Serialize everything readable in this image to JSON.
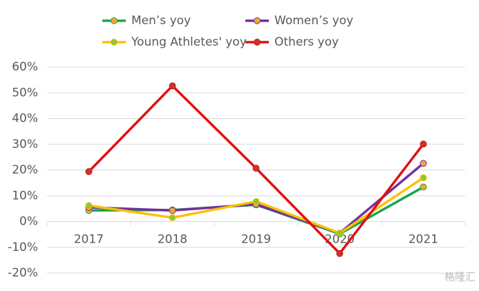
{
  "chart_data": {
    "type": "line",
    "categories": [
      "2017",
      "2018",
      "2019",
      "2020",
      "2021"
    ],
    "series": [
      {
        "name": "Men’s yoy",
        "color": "#1aa64a",
        "marker_color": "#f0a830",
        "values": [
          4.3,
          4.5,
          6.5,
          -4.8,
          13.4
        ]
      },
      {
        "name": "Women’s yoy",
        "color": "#7030a0",
        "marker_color": "#f0a830",
        "values": [
          5.5,
          4.3,
          6.7,
          -4.5,
          22.6
        ]
      },
      {
        "name": "Young Athletes' yoy",
        "color": "#ffc000",
        "marker_color": "#8cc63f",
        "values": [
          6.2,
          1.5,
          7.8,
          -4.5,
          17.0
        ]
      },
      {
        "name": "Others yoy",
        "color": "#e01010",
        "marker_color": "#c0392b",
        "values": [
          19.4,
          52.7,
          20.7,
          -12.4,
          30.1
        ]
      }
    ],
    "ylim": [
      -20,
      60
    ],
    "yticks": [
      {
        "value": -20,
        "label": "-20%"
      },
      {
        "value": -10,
        "label": "-10%"
      },
      {
        "value": 0,
        "label": "0%"
      },
      {
        "value": 10,
        "label": "10%"
      },
      {
        "value": 20,
        "label": "20%"
      },
      {
        "value": 30,
        "label": "30%"
      },
      {
        "value": 40,
        "label": "40%"
      },
      {
        "value": 50,
        "label": "50%"
      },
      {
        "value": 60,
        "label": "60%"
      }
    ],
    "grid": true,
    "watermark": "格隆汇"
  }
}
